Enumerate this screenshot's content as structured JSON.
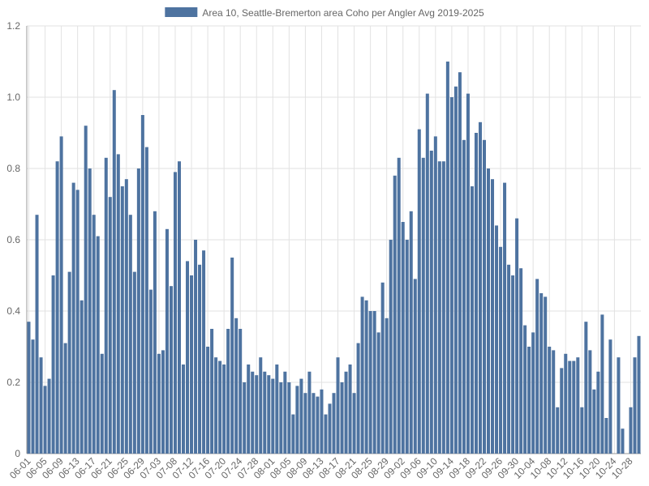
{
  "chart_data": {
    "type": "bar",
    "series": [
      {
        "name": "Area 10, Seattle-Bremerton area Coho per Angler Avg 2019-2025",
        "color": "#4e73a0",
        "values": [
          0.37,
          0.32,
          0.67,
          0.27,
          0.19,
          0.21,
          0.5,
          0.82,
          0.89,
          0.31,
          0.51,
          0.76,
          0.74,
          0.43,
          0.92,
          0.8,
          0.67,
          0.61,
          0.28,
          0.83,
          0.72,
          1.02,
          0.84,
          0.75,
          0.77,
          0.67,
          0.51,
          0.8,
          0.95,
          0.86,
          0.46,
          0.68,
          0.28,
          0.29,
          0.63,
          0.47,
          0.79,
          0.82,
          0.25,
          0.54,
          0.5,
          0.6,
          0.53,
          0.57,
          0.3,
          0.35,
          0.27,
          0.26,
          0.25,
          0.35,
          0.55,
          0.38,
          0.35,
          0.2,
          0.25,
          0.23,
          0.22,
          0.27,
          0.23,
          0.22,
          0.21,
          0.25,
          0.2,
          0.23,
          0.2,
          0.11,
          0.19,
          0.21,
          0.17,
          0.23,
          0.17,
          0.16,
          0.18,
          0.11,
          0.14,
          0.17,
          0.27,
          0.2,
          0.23,
          0.25,
          0.17,
          0.31,
          0.44,
          0.43,
          0.4,
          0.4,
          0.34,
          0.48,
          0.38,
          0.6,
          0.78,
          0.83,
          0.65,
          0.6,
          0.68,
          0.49,
          0.91,
          0.83,
          1.01,
          0.85,
          0.89,
          0.82,
          0.82,
          1.1,
          1.0,
          1.03,
          1.07,
          0.88,
          1.01,
          0.75,
          0.9,
          0.93,
          0.88,
          0.8,
          0.77,
          0.64,
          0.58,
          0.76,
          0.53,
          0.5,
          0.66,
          0.52,
          0.36,
          0.3,
          0.34,
          0.49,
          0.45,
          0.44,
          0.3,
          0.29,
          0.13,
          0.24,
          0.28,
          0.26,
          0.26,
          0.27,
          0.13,
          0.37,
          0.29,
          0.18,
          0.23,
          0.39,
          0.1,
          0.32,
          0,
          0.27,
          0.07,
          0,
          0.13,
          0.27,
          0.33
        ]
      }
    ],
    "categories": [
      "06-01",
      null,
      null,
      null,
      "06-05",
      null,
      null,
      null,
      "06-09",
      null,
      null,
      null,
      "06-13",
      null,
      null,
      null,
      "06-17",
      null,
      null,
      null,
      "06-21",
      null,
      null,
      null,
      "06-25",
      null,
      null,
      null,
      "06-29",
      null,
      null,
      null,
      "07-03",
      null,
      null,
      null,
      "07-08",
      null,
      null,
      null,
      "07-12",
      null,
      null,
      null,
      "07-16",
      null,
      null,
      null,
      "07-20",
      null,
      null,
      null,
      "07-24",
      null,
      null,
      null,
      "07-28",
      null,
      null,
      null,
      "08-01",
      null,
      null,
      null,
      "08-05",
      null,
      null,
      null,
      "08-09",
      null,
      null,
      null,
      "08-13",
      null,
      null,
      null,
      "08-17",
      null,
      null,
      null,
      "08-21",
      null,
      null,
      null,
      "08-25",
      null,
      null,
      null,
      "08-29",
      null,
      null,
      null,
      "09-02",
      null,
      null,
      null,
      "09-06",
      null,
      null,
      null,
      "09-10",
      null,
      null,
      null,
      "09-14",
      null,
      null,
      null,
      "09-18",
      null,
      null,
      null,
      "09-22",
      null,
      null,
      null,
      "09-26",
      null,
      null,
      null,
      "09-30",
      null,
      null,
      null,
      "10-04",
      null,
      null,
      null,
      "10-08",
      null,
      null,
      null,
      "10-12",
      null,
      null,
      null,
      "10-16",
      null,
      null,
      null,
      "10-20",
      null,
      null,
      null,
      "10-24",
      null,
      null,
      null,
      "10-28",
      null,
      null
    ],
    "ylim": [
      0,
      1.2
    ],
    "yticks": [
      0,
      0.2,
      0.4,
      0.6,
      0.8,
      {
        "value": 1,
        "label": "1.0"
      },
      1.2
    ],
    "grid": true,
    "legend": "top"
  }
}
